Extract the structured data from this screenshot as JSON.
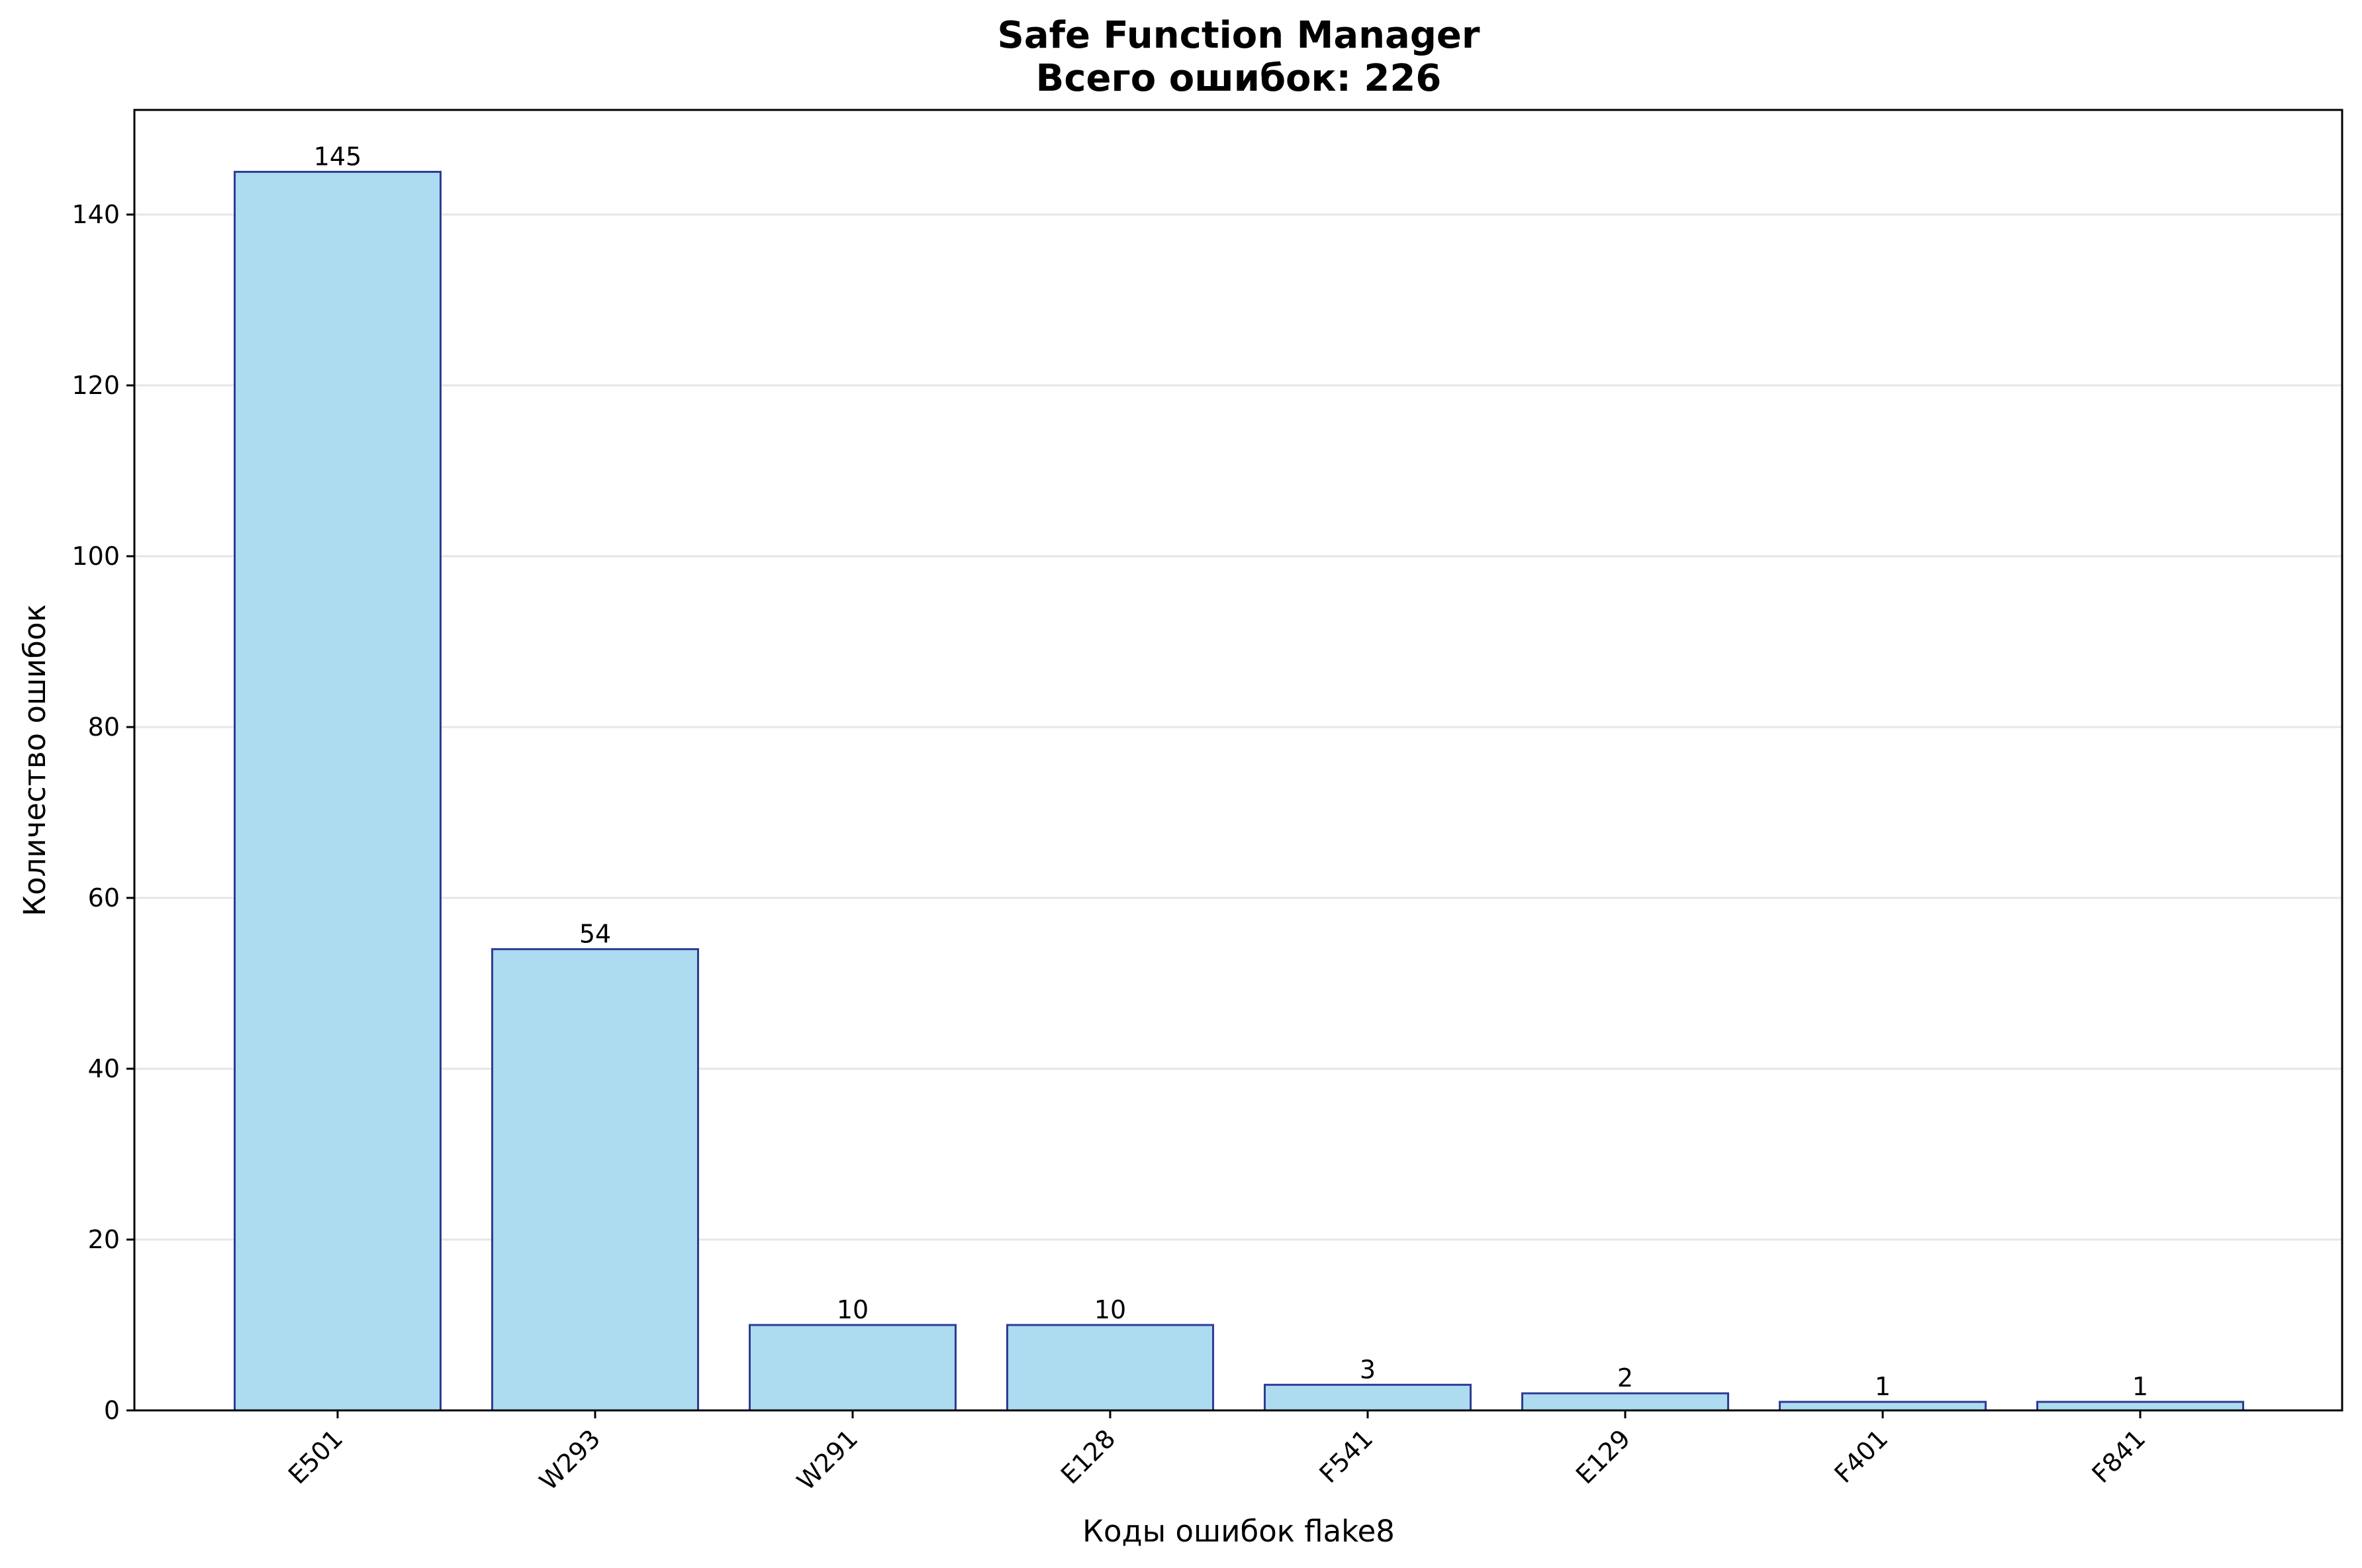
{
  "chart_data": {
    "type": "bar",
    "title": "Safe Function Manager",
    "subtitle": "Всего ошибок: 226",
    "xlabel": "Коды ошибок flake8",
    "ylabel": "Количество ошибок",
    "categories": [
      "E501",
      "W293",
      "W291",
      "E128",
      "F541",
      "E129",
      "F401",
      "F841"
    ],
    "values": [
      145,
      54,
      10,
      10,
      3,
      2,
      1,
      1
    ],
    "data_labels": [
      "145",
      "54",
      "10",
      "10",
      "3",
      "2",
      "1",
      "1"
    ],
    "ylim": [
      0,
      152.25
    ],
    "yticks": [
      0,
      20,
      40,
      60,
      80,
      100,
      120,
      140
    ],
    "ytick_labels": [
      "0",
      "20",
      "40",
      "60",
      "80",
      "100",
      "120",
      "140"
    ],
    "grid": "horizontal",
    "legend": "none",
    "colors": {
      "bar_fill": "#ADDBEF",
      "bar_edge": "#2E3C96",
      "grid": "#E6E6E6",
      "axes": "#000000"
    }
  }
}
